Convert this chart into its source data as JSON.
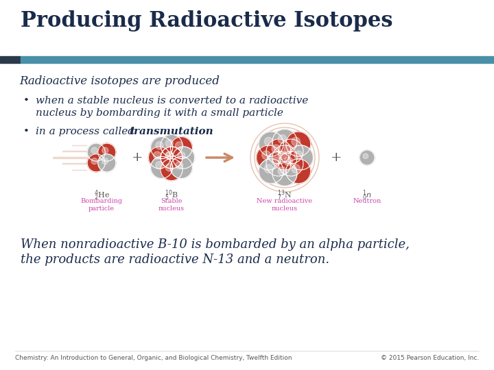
{
  "title": "Producing Radioactive Isotopes",
  "title_color": "#1a2b4a",
  "title_fontsize": 22,
  "title_fontweight": "bold",
  "bar_color": "#4a8fa8",
  "bar_dark_color": "#2a3a4a",
  "subtitle": "Radioactive isotopes are produced",
  "subtitle_color": "#1a2b4a",
  "subtitle_fontsize": 12,
  "bullet1_line1": "when a stable nucleus is converted to a radioactive",
  "bullet1_line2": "nucleus by bombarding it with a small particle",
  "bullet2_text_normal": "in a process called ",
  "bullet2_text_bold": "transmutation",
  "bullet_color": "#1a2b4a",
  "bullet_fontsize": 11,
  "caption_line1": "When nonradioactive B-10 is bombarded by an alpha particle,",
  "caption_line2": "the products are radioactive N-13 and a neutron.",
  "caption_color": "#1a2b4a",
  "caption_fontsize": 13,
  "footer_left": "Chemistry: An Introduction to General, Organic, and Biological Chemistry, Twelfth Edition",
  "footer_right": "© 2015 Pearson Education, Inc.",
  "footer_color": "#555555",
  "footer_fontsize": 6.5,
  "background_color": "#ffffff",
  "label_color": "#cc44aa",
  "red_color": "#c0392b",
  "gray_color": "#b0b0b0"
}
